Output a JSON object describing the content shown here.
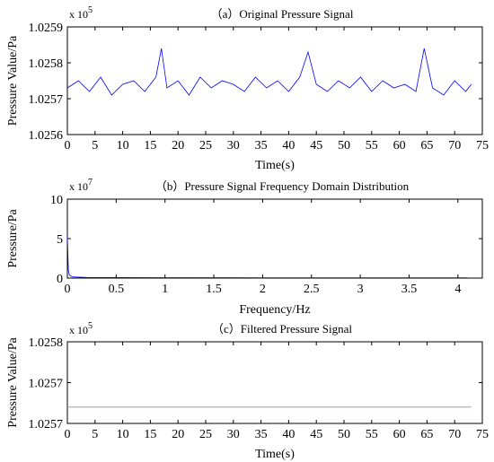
{
  "chart_data": [
    {
      "type": "line",
      "title": "（a）Original Pressure Signal",
      "xlabel": "Time(s)",
      "ylabel": "Pressure Value/Pa",
      "exponent_label": "x 10",
      "exponent": "5",
      "xlim": [
        0,
        75
      ],
      "ylim": [
        1.0256,
        1.0259
      ],
      "x_ticks": [
        "0",
        "5",
        "10",
        "15",
        "20",
        "25",
        "30",
        "35",
        "40",
        "45",
        "50",
        "55",
        "60",
        "65",
        "70",
        "75"
      ],
      "y_ticks": [
        "1.0256",
        "1.0257",
        "1.0258",
        "1.0259"
      ],
      "grid": false,
      "series": [
        {
          "color": "#0000ff",
          "x": [
            0,
            2,
            4,
            6,
            8,
            10,
            12,
            14,
            16,
            17,
            18,
            20,
            22,
            24,
            26,
            28,
            30,
            32,
            34,
            36,
            38,
            40,
            42,
            43.5,
            45,
            47,
            49,
            51,
            53,
            55,
            57,
            59,
            61,
            63,
            64.5,
            66,
            68,
            70,
            72,
            73
          ],
          "y": [
            1.02573,
            1.02575,
            1.02572,
            1.02576,
            1.02571,
            1.02574,
            1.02575,
            1.02572,
            1.02576,
            1.02584,
            1.02573,
            1.02575,
            1.02571,
            1.02576,
            1.02573,
            1.02575,
            1.02574,
            1.02572,
            1.02576,
            1.02573,
            1.02575,
            1.02572,
            1.02576,
            1.02583,
            1.02574,
            1.02572,
            1.02575,
            1.02573,
            1.02576,
            1.02572,
            1.02575,
            1.02573,
            1.02574,
            1.02572,
            1.02584,
            1.02573,
            1.02571,
            1.02575,
            1.02572,
            1.02574
          ]
        }
      ]
    },
    {
      "type": "line",
      "title": "（b）Pressure Signal Frequency Domain Distribution",
      "xlabel": "Frequency/Hz",
      "ylabel": "Pressure/Pa",
      "exponent_label": "x 10",
      "exponent": "7",
      "xlim": [
        0,
        4.25
      ],
      "ylim": [
        0,
        10
      ],
      "x_ticks": [
        "0",
        "0.5",
        "1",
        "1.5",
        "2",
        "2.5",
        "3",
        "3.5",
        "4"
      ],
      "y_ticks": [
        "0",
        "5",
        "10"
      ],
      "grid": false,
      "series": [
        {
          "color": "#0000ff",
          "x": [
            0,
            0.01,
            0.02,
            0.05,
            0.2,
            1,
            2,
            3,
            4,
            4.1
          ],
          "y": [
            5.3,
            1.0,
            0.4,
            0.15,
            0.08,
            0.06,
            0.05,
            0.05,
            0.05,
            0.05
          ]
        }
      ]
    },
    {
      "type": "line",
      "title": "（c）Filtered Pressure Signal",
      "xlabel": "Time(s)",
      "ylabel": "Pressure Value/Pa",
      "exponent_label": "x 10",
      "exponent": "5",
      "xlim": [
        0,
        75
      ],
      "ylim": [
        1.0257,
        1.0258
      ],
      "x_ticks": [
        "0",
        "5",
        "10",
        "15",
        "20",
        "25",
        "30",
        "35",
        "40",
        "45",
        "50",
        "55",
        "60",
        "65",
        "70",
        "75"
      ],
      "y_ticks": [
        "1.0257",
        "1.0257",
        "1.0258"
      ],
      "grid": false,
      "series": [
        {
          "color": "#8c8cd8",
          "x": [
            0,
            23,
            23.01,
            73
          ],
          "y": [
            1.02572,
            1.02572,
            1.02572,
            1.02572
          ]
        }
      ]
    }
  ]
}
